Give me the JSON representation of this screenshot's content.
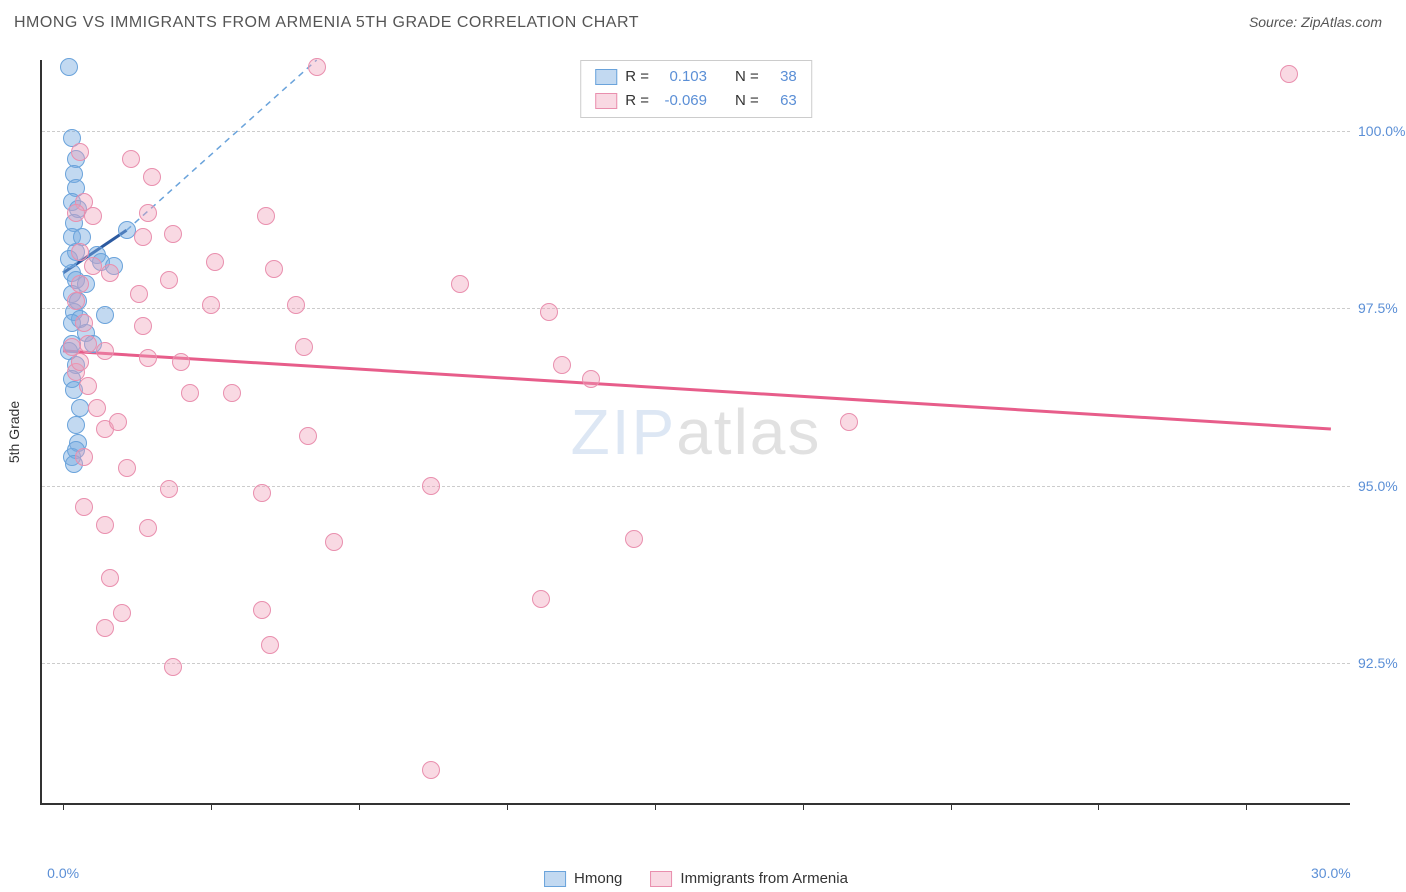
{
  "header": {
    "title": "HMONG VS IMMIGRANTS FROM ARMENIA 5TH GRADE CORRELATION CHART",
    "source": "Source: ZipAtlas.com"
  },
  "axes": {
    "y_label": "5th Grade",
    "ylim": [
      90.5,
      101.0
    ],
    "xlim": [
      -0.5,
      30.5
    ],
    "y_ticks": [
      92.5,
      95.0,
      97.5,
      100.0
    ],
    "y_tick_labels": [
      "92.5%",
      "95.0%",
      "97.5%",
      "100.0%"
    ],
    "x_ticks": [
      0,
      3.5,
      7.0,
      10.5,
      14.0,
      17.5,
      21.0,
      24.5,
      28.0
    ],
    "x_tick_labels": {
      "0": "0.0%",
      "30": "30.0%"
    },
    "grid_color": "#cccccc",
    "axis_color": "#333333",
    "tick_label_color": "#5b8fd6"
  },
  "series": [
    {
      "name": "Hmong",
      "fill": "rgba(120,170,225,0.45)",
      "stroke": "#6aa3db",
      "marker_r": 9,
      "R": "0.103",
      "N": "38",
      "trend": {
        "x1": 0,
        "y1": 98.0,
        "x2": 1.5,
        "y2": 98.6,
        "color": "#2c5aa0",
        "dash": "",
        "width": 3
      },
      "trend_ext": {
        "x1": 1.5,
        "y1": 98.6,
        "x2": 6.0,
        "y2": 101.0,
        "color": "#6aa3db",
        "dash": "6,5",
        "width": 1.5
      },
      "points": [
        [
          0.15,
          100.9
        ],
        [
          0.2,
          99.9
        ],
        [
          0.3,
          99.6
        ],
        [
          0.25,
          99.4
        ],
        [
          0.3,
          99.2
        ],
        [
          0.2,
          99.0
        ],
        [
          0.35,
          98.9
        ],
        [
          0.25,
          98.7
        ],
        [
          0.2,
          98.5
        ],
        [
          0.45,
          98.5
        ],
        [
          0.3,
          98.3
        ],
        [
          0.15,
          98.2
        ],
        [
          0.8,
          98.25
        ],
        [
          0.9,
          98.15
        ],
        [
          0.2,
          98.0
        ],
        [
          0.3,
          97.9
        ],
        [
          0.55,
          97.85
        ],
        [
          0.2,
          97.7
        ],
        [
          0.35,
          97.6
        ],
        [
          0.25,
          97.45
        ],
        [
          0.4,
          97.35
        ],
        [
          0.2,
          97.3
        ],
        [
          0.55,
          97.15
        ],
        [
          0.2,
          97.0
        ],
        [
          0.15,
          96.9
        ],
        [
          0.3,
          96.7
        ],
        [
          0.2,
          96.5
        ],
        [
          0.25,
          96.35
        ],
        [
          0.4,
          96.1
        ],
        [
          0.3,
          95.85
        ],
        [
          0.35,
          95.6
        ],
        [
          0.2,
          95.4
        ],
        [
          0.3,
          95.5
        ],
        [
          0.25,
          95.3
        ],
        [
          1.2,
          98.1
        ],
        [
          1.0,
          97.4
        ],
        [
          0.7,
          97.0
        ],
        [
          1.5,
          98.6
        ]
      ]
    },
    {
      "name": "Immigrants from Armenia",
      "fill": "rgba(240,160,185,0.4)",
      "stroke": "#e98fae",
      "marker_r": 9,
      "R": "-0.069",
      "N": "63",
      "trend": {
        "x1": 0,
        "y1": 96.9,
        "x2": 30,
        "y2": 95.8,
        "color": "#e75d8a",
        "dash": "",
        "width": 3
      },
      "points": [
        [
          0.4,
          99.7
        ],
        [
          1.6,
          99.6
        ],
        [
          0.5,
          99.0
        ],
        [
          0.7,
          98.8
        ],
        [
          4.8,
          98.8
        ],
        [
          0.3,
          98.85
        ],
        [
          2.0,
          98.85
        ],
        [
          1.9,
          98.5
        ],
        [
          0.4,
          98.3
        ],
        [
          0.7,
          98.1
        ],
        [
          2.1,
          99.35
        ],
        [
          1.1,
          98.0
        ],
        [
          2.5,
          97.9
        ],
        [
          2.6,
          98.55
        ],
        [
          0.5,
          97.3
        ],
        [
          1.8,
          97.7
        ],
        [
          3.5,
          97.55
        ],
        [
          3.6,
          98.15
        ],
        [
          5.0,
          98.05
        ],
        [
          0.6,
          97.0
        ],
        [
          1.0,
          96.9
        ],
        [
          0.2,
          96.95
        ],
        [
          1.9,
          97.25
        ],
        [
          5.5,
          97.55
        ],
        [
          0.3,
          96.6
        ],
        [
          5.7,
          96.95
        ],
        [
          2.0,
          96.8
        ],
        [
          2.8,
          96.75
        ],
        [
          0.6,
          96.4
        ],
        [
          9.4,
          97.85
        ],
        [
          11.5,
          97.45
        ],
        [
          11.8,
          96.7
        ],
        [
          12.5,
          96.5
        ],
        [
          0.8,
          96.1
        ],
        [
          1.0,
          95.8
        ],
        [
          0.5,
          95.4
        ],
        [
          3.0,
          96.3
        ],
        [
          1.3,
          95.9
        ],
        [
          4.0,
          96.3
        ],
        [
          5.8,
          95.7
        ],
        [
          18.6,
          95.9
        ],
        [
          1.5,
          95.25
        ],
        [
          4.7,
          94.9
        ],
        [
          2.5,
          94.95
        ],
        [
          0.5,
          94.7
        ],
        [
          8.7,
          95.0
        ],
        [
          1.0,
          94.45
        ],
        [
          2.0,
          94.4
        ],
        [
          6.4,
          94.2
        ],
        [
          13.5,
          94.25
        ],
        [
          1.1,
          93.7
        ],
        [
          1.4,
          93.2
        ],
        [
          4.7,
          93.25
        ],
        [
          11.3,
          93.4
        ],
        [
          1.0,
          93.0
        ],
        [
          2.6,
          92.45
        ],
        [
          4.9,
          92.75
        ],
        [
          8.7,
          91.0
        ],
        [
          6.0,
          100.9
        ],
        [
          29.0,
          100.8
        ],
        [
          0.3,
          97.6
        ],
        [
          0.4,
          96.75
        ],
        [
          0.4,
          97.85
        ]
      ]
    }
  ],
  "legend_top": {
    "label_R": "R =",
    "label_N": "N ="
  },
  "legend_bottom": [
    "Hmong",
    "Immigrants from Armenia"
  ],
  "watermark": {
    "a": "ZIP",
    "b": "atlas"
  }
}
